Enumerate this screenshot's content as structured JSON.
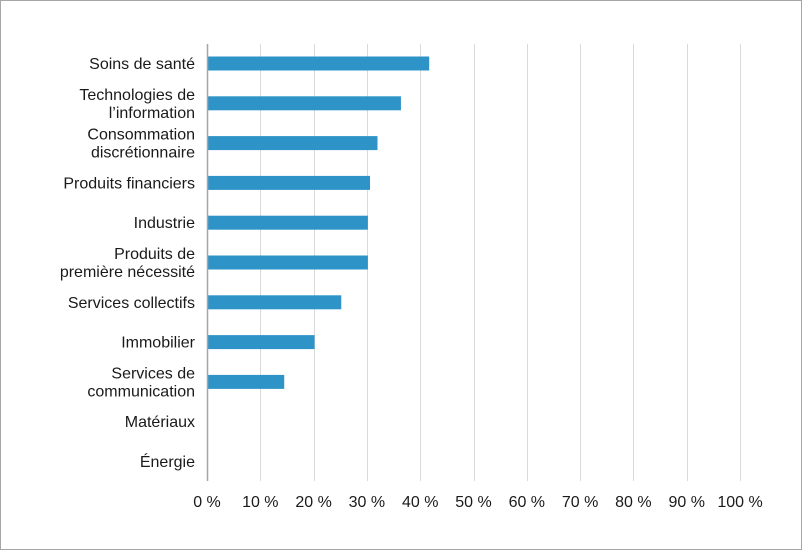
{
  "chart_data": {
    "type": "bar",
    "orientation": "horizontal",
    "categories": [
      [
        "Soins de santé"
      ],
      [
        "Technologies de",
        "l’information"
      ],
      [
        "Consommation",
        "discrétionnaire"
      ],
      [
        "Produits financiers"
      ],
      [
        "Industrie"
      ],
      [
        "Produits de",
        "première nécessité"
      ],
      [
        "Services collectifs"
      ],
      [
        "Immobilier"
      ],
      [
        "Services de",
        "communication"
      ],
      [
        "Matériaux"
      ],
      [
        "Énergie"
      ]
    ],
    "values": [
      41.5,
      36.2,
      31.8,
      30.4,
      30.0,
      30.0,
      25.0,
      20.0,
      14.3,
      0,
      0
    ],
    "xlim": [
      0,
      100
    ],
    "xticks": [
      0,
      10,
      20,
      30,
      40,
      50,
      60,
      70,
      80,
      90,
      100
    ],
    "xtick_labels": [
      "0 %",
      "10 %",
      "20 %",
      "30 %",
      "40 %",
      "50 %",
      "60 %",
      "70 %",
      "80 %",
      "90 %",
      "100 %"
    ],
    "title": "",
    "xlabel": "",
    "ylabel": "",
    "grid": "vertical",
    "legend": "none",
    "colors": {
      "bar": "#2e94c8",
      "grid": "#d9d9d9",
      "axis": "#a6a6a6",
      "text": "#1a1a1a"
    }
  }
}
